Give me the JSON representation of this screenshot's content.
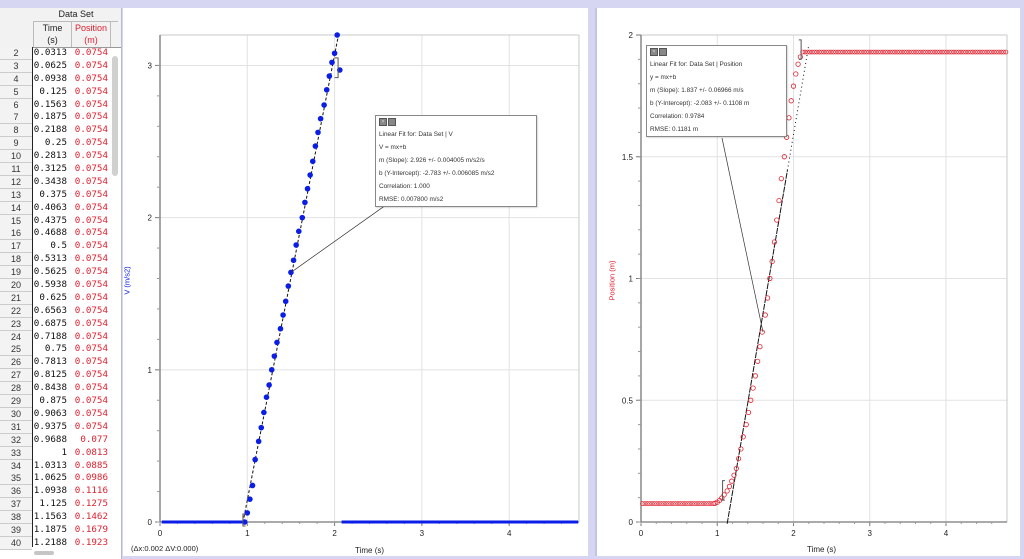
{
  "table": {
    "dataset_label": "Data Set",
    "columns": [
      {
        "name": "Time",
        "unit": "(s)",
        "color": "#222222"
      },
      {
        "name": "Position",
        "unit": "(m)",
        "color": "#e0202e"
      }
    ],
    "rows": [
      {
        "n": "2",
        "t": "0.0313",
        "p": "0.0754"
      },
      {
        "n": "3",
        "t": "0.0625",
        "p": "0.0754"
      },
      {
        "n": "4",
        "t": "0.0938",
        "p": "0.0754"
      },
      {
        "n": "5",
        "t": "0.125",
        "p": "0.0754"
      },
      {
        "n": "6",
        "t": "0.1563",
        "p": "0.0754"
      },
      {
        "n": "7",
        "t": "0.1875",
        "p": "0.0754"
      },
      {
        "n": "8",
        "t": "0.2188",
        "p": "0.0754"
      },
      {
        "n": "9",
        "t": "0.25",
        "p": "0.0754"
      },
      {
        "n": "10",
        "t": "0.2813",
        "p": "0.0754"
      },
      {
        "n": "11",
        "t": "0.3125",
        "p": "0.0754"
      },
      {
        "n": "12",
        "t": "0.3438",
        "p": "0.0754"
      },
      {
        "n": "13",
        "t": "0.375",
        "p": "0.0754"
      },
      {
        "n": "14",
        "t": "0.4063",
        "p": "0.0754"
      },
      {
        "n": "15",
        "t": "0.4375",
        "p": "0.0754"
      },
      {
        "n": "16",
        "t": "0.4688",
        "p": "0.0754"
      },
      {
        "n": "17",
        "t": "0.5",
        "p": "0.0754"
      },
      {
        "n": "18",
        "t": "0.5313",
        "p": "0.0754"
      },
      {
        "n": "19",
        "t": "0.5625",
        "p": "0.0754"
      },
      {
        "n": "20",
        "t": "0.5938",
        "p": "0.0754"
      },
      {
        "n": "21",
        "t": "0.625",
        "p": "0.0754"
      },
      {
        "n": "22",
        "t": "0.6563",
        "p": "0.0754"
      },
      {
        "n": "23",
        "t": "0.6875",
        "p": "0.0754"
      },
      {
        "n": "24",
        "t": "0.7188",
        "p": "0.0754"
      },
      {
        "n": "25",
        "t": "0.75",
        "p": "0.0754"
      },
      {
        "n": "26",
        "t": "0.7813",
        "p": "0.0754"
      },
      {
        "n": "27",
        "t": "0.8125",
        "p": "0.0754"
      },
      {
        "n": "28",
        "t": "0.8438",
        "p": "0.0754"
      },
      {
        "n": "29",
        "t": "0.875",
        "p": "0.0754"
      },
      {
        "n": "30",
        "t": "0.9063",
        "p": "0.0754"
      },
      {
        "n": "31",
        "t": "0.9375",
        "p": "0.0754"
      },
      {
        "n": "32",
        "t": "0.9688",
        "p": "0.077"
      },
      {
        "n": "33",
        "t": "1",
        "p": "0.0813"
      },
      {
        "n": "34",
        "t": "1.0313",
        "p": "0.0885"
      },
      {
        "n": "35",
        "t": "1.0625",
        "p": "0.0986"
      },
      {
        "n": "36",
        "t": "1.0938",
        "p": "0.1116"
      },
      {
        "n": "37",
        "t": "1.125",
        "p": "0.1275"
      },
      {
        "n": "38",
        "t": "1.1563",
        "p": "0.1462"
      },
      {
        "n": "39",
        "t": "1.1875",
        "p": "0.1679"
      },
      {
        "n": "40",
        "t": "1.2188",
        "p": "0.1923"
      }
    ]
  },
  "left_chart": {
    "ylabel": "V (m/s2)",
    "xlabel": "Time (s)",
    "xticks": [
      "0",
      "1",
      "2",
      "3",
      "4"
    ],
    "yticks": [
      "0",
      "1",
      "2",
      "3"
    ],
    "delta_readout": "(Δx:0.002 ΔV:0.000)",
    "fit": {
      "title": "Linear Fit for: Data Set | V",
      "equation": "V = mx+b",
      "slope": "m (Slope): 2.926 +/- 0.004005 m/s2/s",
      "intercept": "b (Y-Intercept): -2.783 +/- 0.006085 m/s2",
      "correlation": "Correlation: 1.000",
      "rmse": "RMSE: 0.007800 m/s2"
    },
    "series_color": "#0a1ee6"
  },
  "right_chart": {
    "ylabel": "Position (m)",
    "xlabel": "Time (s)",
    "xticks": [
      "0",
      "1",
      "2",
      "3",
      "4"
    ],
    "yticks": [
      "0",
      "0.5",
      "1",
      "1.5",
      "2"
    ],
    "fit": {
      "title": "Linear Fit for: Data Set | Position",
      "equation": "y = mx+b",
      "slope": "m (Slope): 1.837 +/- 0.06966 m/s",
      "intercept": "b (Y-Intercept): -2.083 +/- 0.1108 m",
      "correlation": "Correlation: 0.9784",
      "rmse": "RMSE: 0.1181 m"
    },
    "series_color": "#e0202e"
  },
  "chart_data": [
    {
      "type": "scatter",
      "title": "",
      "xlabel": "Time (s)",
      "ylabel": "V (m/s2)",
      "xlim": [
        0,
        4.8
      ],
      "ylim": [
        0,
        3.2
      ],
      "grid": true,
      "series": [
        {
          "name": "V",
          "x": [
            0.97,
            1.0,
            1.03,
            1.06,
            1.09,
            1.13,
            1.16,
            1.19,
            1.22,
            1.25,
            1.28,
            1.31,
            1.34,
            1.38,
            1.41,
            1.44,
            1.47,
            1.5,
            1.53,
            1.56,
            1.59,
            1.63,
            1.66,
            1.69,
            1.72,
            1.75,
            1.78,
            1.81,
            1.84,
            1.88,
            1.91,
            1.94,
            1.97,
            2.0,
            2.03,
            2.06
          ],
          "y": [
            0.0,
            0.06,
            0.15,
            0.24,
            0.41,
            0.53,
            0.62,
            0.72,
            0.82,
            0.9,
            1.0,
            1.09,
            1.18,
            1.27,
            1.36,
            1.45,
            1.55,
            1.64,
            1.72,
            1.82,
            1.91,
            2.0,
            2.1,
            2.19,
            2.28,
            2.37,
            2.47,
            2.56,
            2.65,
            2.74,
            2.84,
            2.93,
            3.02,
            3.08,
            3.2,
            2.97
          ]
        },
        {
          "name": "V baseline",
          "x": [
            0,
            0.95,
            2.08,
            4.8
          ],
          "y": [
            0,
            0,
            0,
            0
          ]
        }
      ],
      "fit": {
        "m": 2.926,
        "b": -2.783,
        "range": [
          0.95,
          2.05
        ]
      }
    },
    {
      "type": "scatter",
      "title": "",
      "xlabel": "Time (s)",
      "ylabel": "Position (m)",
      "xlim": [
        0,
        4.8
      ],
      "ylim": [
        0,
        2
      ],
      "grid": true,
      "series": [
        {
          "name": "Position",
          "x": [
            0,
            0.97,
            1.0,
            1.03,
            1.06,
            1.09,
            1.13,
            1.16,
            1.19,
            1.22,
            1.25,
            1.28,
            1.31,
            1.34,
            1.38,
            1.41,
            1.44,
            1.47,
            1.5,
            1.53,
            1.56,
            1.59,
            1.63,
            1.66,
            1.69,
            1.72,
            1.75,
            1.78,
            1.81,
            1.84,
            1.88,
            1.91,
            1.94,
            1.97,
            2.0,
            2.03,
            2.06,
            2.09,
            2.12,
            2.2,
            4.8
          ],
          "y": [
            0.0754,
            0.077,
            0.0813,
            0.0885,
            0.0986,
            0.1116,
            0.1275,
            0.1462,
            0.1679,
            0.1923,
            0.22,
            0.26,
            0.3,
            0.35,
            0.4,
            0.45,
            0.5,
            0.55,
            0.6,
            0.66,
            0.72,
            0.78,
            0.85,
            0.92,
            1.0,
            1.07,
            1.15,
            1.24,
            1.32,
            1.41,
            1.5,
            1.58,
            1.66,
            1.73,
            1.79,
            1.84,
            1.88,
            1.91,
            1.93,
            1.93,
            1.93
          ]
        }
      ],
      "fit": {
        "m": 1.837,
        "b": -2.083,
        "range": [
          1.13,
          2.2
        ]
      }
    }
  ]
}
